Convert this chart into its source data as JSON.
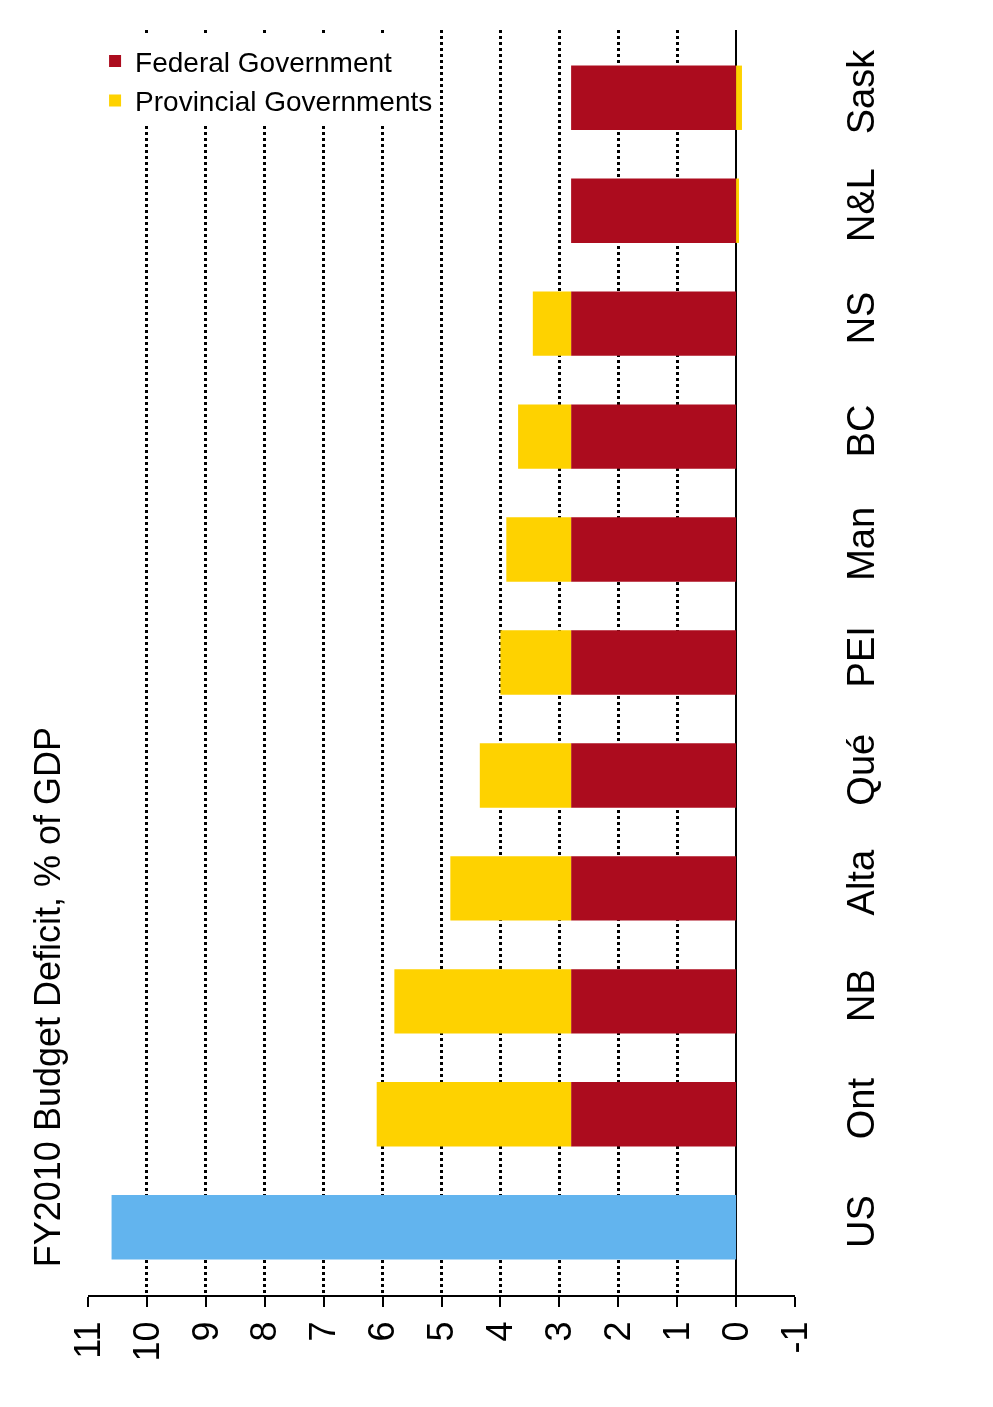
{
  "chart_data": {
    "type": "bar",
    "title": "FY2010 Budget Deficit, % of GDP",
    "orientation": "horizontal",
    "categories": [
      "Sask",
      "N&L",
      "NS",
      "BC",
      "Man",
      "PEI",
      "Qué",
      "Alta",
      "NB",
      "Ont",
      "US"
    ],
    "stacked": true,
    "series": [
      {
        "name": "Federal Government",
        "color": "#ac0c1e",
        "colors": [
          null,
          null,
          null,
          null,
          null,
          null,
          null,
          null,
          null,
          null,
          "#62b4ee"
        ],
        "values": [
          2.8,
          2.8,
          2.8,
          2.8,
          2.8,
          2.8,
          2.8,
          2.8,
          2.8,
          2.8,
          10.6
        ]
      },
      {
        "name": "Provincial Governments",
        "color": "#fed200",
        "values": [
          -0.1,
          -0.05,
          0.65,
          0.9,
          1.1,
          1.2,
          1.55,
          2.05,
          3.0,
          3.3,
          null
        ]
      }
    ],
    "xlim": [
      11,
      -1
    ],
    "xticks": [
      11,
      10,
      9,
      8,
      7,
      6,
      5,
      4,
      3,
      2,
      1,
      0,
      -1
    ],
    "grid": "x",
    "legend": "top left"
  }
}
